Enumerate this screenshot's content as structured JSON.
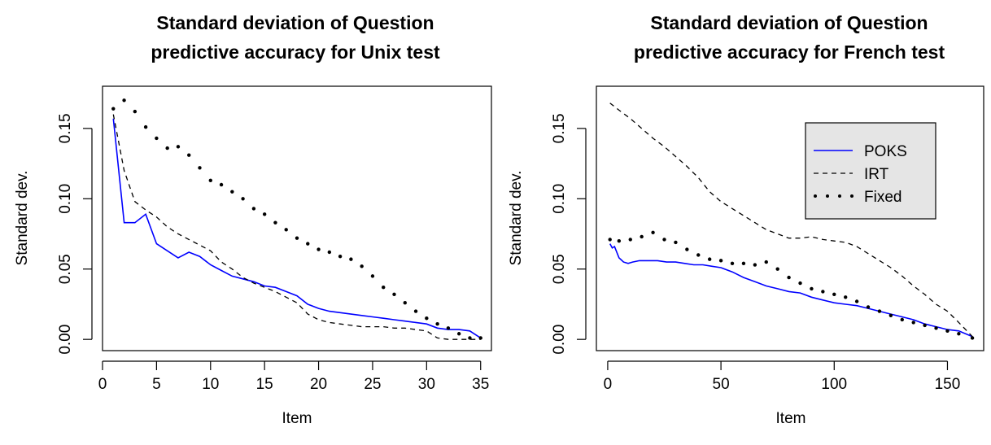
{
  "chart_data": [
    {
      "type": "line",
      "title": [
        "Standard deviation of Question",
        "predictive accuracy for Unix test"
      ],
      "xlabel": "Item",
      "ylabel": "Standard dev.",
      "xlim": [
        0,
        36
      ],
      "ylim": [
        -0.008,
        0.18
      ],
      "xticks": [
        0,
        5,
        10,
        15,
        20,
        25,
        30,
        35
      ],
      "yticks": [
        0.0,
        0.05,
        0.1,
        0.15
      ],
      "ytick_labels": [
        "0.00",
        "0.05",
        "0.10",
        "0.15"
      ],
      "grid": false,
      "legend": null,
      "series": [
        {
          "name": "POKS",
          "style": "solid",
          "color": "#0000ff",
          "x": [
            1,
            2,
            3,
            4,
            5,
            6,
            7,
            8,
            9,
            10,
            11,
            12,
            13,
            14,
            15,
            16,
            17,
            18,
            19,
            20,
            21,
            22,
            23,
            24,
            25,
            26,
            27,
            28,
            29,
            30,
            31,
            32,
            33,
            34,
            35
          ],
          "y": [
            0.157,
            0.083,
            0.083,
            0.089,
            0.068,
            0.063,
            0.058,
            0.062,
            0.059,
            0.053,
            0.049,
            0.045,
            0.043,
            0.041,
            0.038,
            0.037,
            0.034,
            0.031,
            0.025,
            0.022,
            0.02,
            0.019,
            0.018,
            0.017,
            0.016,
            0.015,
            0.014,
            0.013,
            0.012,
            0.011,
            0.008,
            0.007,
            0.007,
            0.006,
            0.001
          ]
        },
        {
          "name": "IRT",
          "style": "dashed",
          "color": "#000000",
          "x": [
            1,
            2,
            3,
            4,
            5,
            6,
            7,
            8,
            9,
            10,
            11,
            12,
            13,
            14,
            15,
            16,
            17,
            18,
            19,
            20,
            21,
            22,
            23,
            24,
            25,
            26,
            27,
            28,
            29,
            30,
            31,
            32,
            33,
            34,
            35
          ],
          "y": [
            0.16,
            0.12,
            0.098,
            0.092,
            0.087,
            0.08,
            0.075,
            0.071,
            0.067,
            0.063,
            0.055,
            0.05,
            0.044,
            0.04,
            0.037,
            0.034,
            0.03,
            0.026,
            0.018,
            0.014,
            0.012,
            0.011,
            0.01,
            0.009,
            0.009,
            0.009,
            0.008,
            0.008,
            0.007,
            0.006,
            0.001,
            0.0,
            0.0,
            0.0,
            0.0
          ]
        },
        {
          "name": "Fixed",
          "style": "dotted",
          "color": "#000000",
          "x": [
            1,
            2,
            3,
            4,
            5,
            6,
            7,
            8,
            9,
            10,
            11,
            12,
            13,
            14,
            15,
            16,
            17,
            18,
            19,
            20,
            21,
            22,
            23,
            24,
            25,
            26,
            27,
            28,
            29,
            30,
            31,
            32,
            33,
            34,
            35
          ],
          "y": [
            0.164,
            0.17,
            0.162,
            0.151,
            0.143,
            0.136,
            0.137,
            0.131,
            0.122,
            0.113,
            0.11,
            0.105,
            0.1,
            0.093,
            0.089,
            0.083,
            0.078,
            0.072,
            0.068,
            0.064,
            0.062,
            0.059,
            0.057,
            0.052,
            0.045,
            0.037,
            0.032,
            0.026,
            0.02,
            0.015,
            0.011,
            0.008,
            0.004,
            0.001,
            0.001
          ]
        }
      ]
    },
    {
      "type": "line",
      "title": [
        "Standard deviation of Question",
        "predictive accuracy for French test"
      ],
      "xlabel": "Item",
      "ylabel": "Standard dev.",
      "xlim": [
        -5,
        166
      ],
      "ylim": [
        -0.008,
        0.18
      ],
      "xticks": [
        0,
        50,
        100,
        150
      ],
      "yticks": [
        0.0,
        0.05,
        0.1,
        0.15
      ],
      "ytick_labels": [
        "0.00",
        "0.05",
        "0.10",
        "0.15"
      ],
      "grid": false,
      "legend": {
        "placement": "top-right",
        "entries": [
          "POKS",
          "IRT",
          "Fixed"
        ],
        "background": "#e5e5e5"
      },
      "series": [
        {
          "name": "POKS",
          "style": "solid",
          "color": "#0000ff",
          "x": [
            1,
            2,
            3,
            5,
            7,
            9,
            11,
            14,
            18,
            22,
            26,
            30,
            34,
            38,
            42,
            46,
            50,
            55,
            60,
            65,
            70,
            75,
            80,
            85,
            90,
            95,
            100,
            105,
            110,
            115,
            120,
            125,
            130,
            135,
            140,
            145,
            150,
            155,
            161
          ],
          "y": [
            0.068,
            0.065,
            0.066,
            0.058,
            0.055,
            0.054,
            0.055,
            0.056,
            0.056,
            0.056,
            0.055,
            0.055,
            0.054,
            0.053,
            0.053,
            0.052,
            0.051,
            0.048,
            0.044,
            0.041,
            0.038,
            0.036,
            0.034,
            0.033,
            0.03,
            0.028,
            0.026,
            0.025,
            0.024,
            0.022,
            0.02,
            0.018,
            0.016,
            0.014,
            0.011,
            0.009,
            0.007,
            0.006,
            0.002
          ]
        },
        {
          "name": "IRT",
          "style": "dashed",
          "color": "#000000",
          "x": [
            1,
            5,
            10,
            15,
            20,
            25,
            30,
            35,
            40,
            45,
            50,
            55,
            60,
            65,
            70,
            75,
            80,
            85,
            90,
            95,
            100,
            105,
            110,
            115,
            120,
            125,
            130,
            135,
            140,
            145,
            150,
            155,
            161
          ],
          "y": [
            0.168,
            0.163,
            0.157,
            0.15,
            0.143,
            0.137,
            0.13,
            0.123,
            0.115,
            0.105,
            0.098,
            0.093,
            0.088,
            0.083,
            0.078,
            0.075,
            0.072,
            0.072,
            0.073,
            0.071,
            0.07,
            0.069,
            0.066,
            0.061,
            0.056,
            0.051,
            0.045,
            0.038,
            0.032,
            0.025,
            0.02,
            0.012,
            0.002
          ]
        },
        {
          "name": "Fixed",
          "style": "dotted",
          "color": "#000000",
          "x": [
            1,
            5,
            10,
            15,
            20,
            25,
            30,
            35,
            40,
            45,
            50,
            55,
            60,
            65,
            70,
            75,
            80,
            85,
            90,
            95,
            100,
            105,
            110,
            115,
            120,
            125,
            130,
            135,
            140,
            145,
            150,
            155,
            161
          ],
          "y": [
            0.071,
            0.07,
            0.071,
            0.073,
            0.076,
            0.071,
            0.069,
            0.064,
            0.06,
            0.057,
            0.056,
            0.054,
            0.054,
            0.053,
            0.055,
            0.05,
            0.044,
            0.04,
            0.036,
            0.034,
            0.032,
            0.03,
            0.027,
            0.023,
            0.02,
            0.017,
            0.014,
            0.012,
            0.01,
            0.008,
            0.006,
            0.004,
            0.001
          ]
        }
      ]
    }
  ]
}
